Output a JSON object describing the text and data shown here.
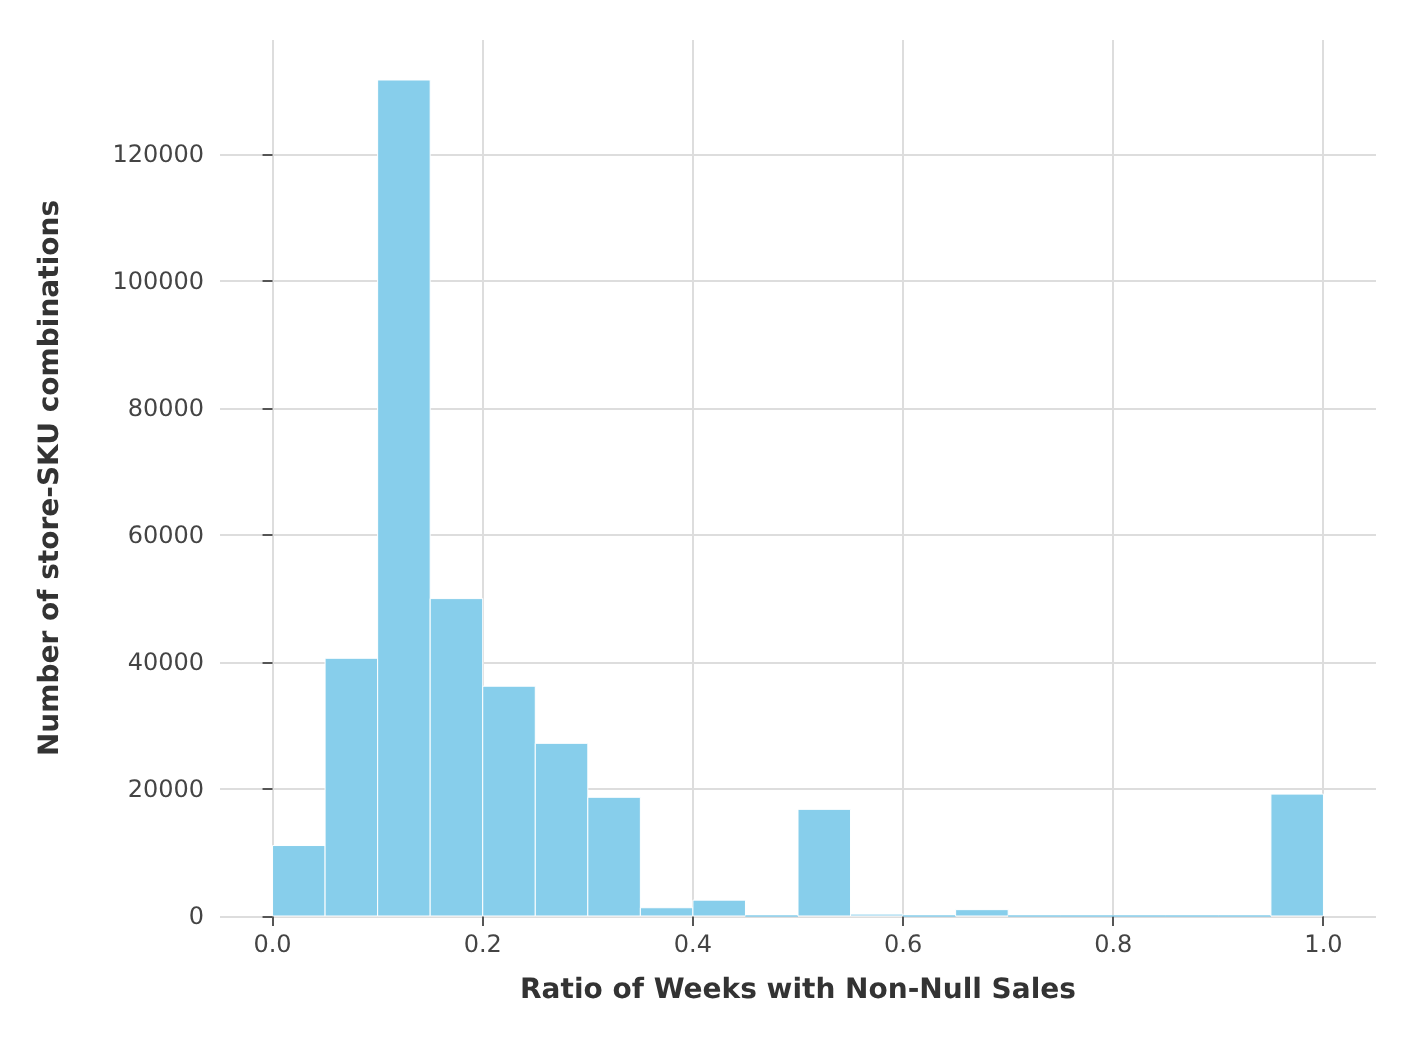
{
  "chart_data": {
    "type": "histogram",
    "xlabel": "Ratio of Weeks with Non-Null Sales",
    "ylabel": "Number of store-SKU combinations",
    "bins": [
      0,
      0.05,
      0.1,
      0.15,
      0.2,
      0.25,
      0.3,
      0.35,
      0.4,
      0.45,
      0.5,
      0.55,
      0.6,
      0.65,
      0.7,
      0.75,
      0.8,
      0.85,
      0.9,
      0.95,
      1.0
    ],
    "values": [
      11100,
      40600,
      131700,
      50000,
      36200,
      27200,
      18700,
      1300,
      2500,
      0,
      16800,
      300,
      0,
      1000,
      0,
      0,
      0,
      0,
      0,
      19200
    ],
    "color": "#87ceeb",
    "xlim": [
      -0.05,
      1.05
    ],
    "xticks": [
      {
        "value": 0,
        "label": "0.0"
      },
      0.2,
      0.4,
      0.6,
      0.8,
      {
        "value": 1,
        "label": "1.0"
      }
    ],
    "ylim": [
      0,
      138000
    ],
    "yticks": [
      0,
      20000,
      40000,
      60000,
      80000,
      100000,
      120000
    ],
    "grid": true
  }
}
